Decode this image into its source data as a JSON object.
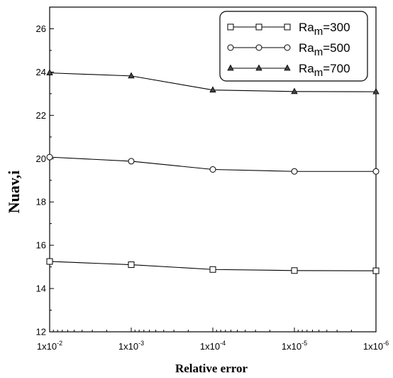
{
  "chart_data": {
    "type": "line",
    "xlabel": "Relative error",
    "ylabel": "Nuav,i",
    "x_scale": "log-reversed",
    "xlim": [
      0.01,
      1e-06
    ],
    "ylim": [
      12,
      27
    ],
    "x": [
      0.01,
      0.001,
      0.0001,
      1e-05,
      1e-06
    ],
    "x_tick_labels": [
      {
        "base": "1x10",
        "exp": "-2"
      },
      {
        "base": "1x10",
        "exp": "-3"
      },
      {
        "base": "1x10",
        "exp": "-4"
      },
      {
        "base": "1x10",
        "exp": "-5"
      },
      {
        "base": "1x10",
        "exp": "-6"
      }
    ],
    "y_ticks": [
      12,
      14,
      16,
      18,
      20,
      22,
      24,
      26
    ],
    "y_tick_labels": [
      "12",
      "14",
      "16",
      "18",
      "20",
      "22",
      "24",
      "26"
    ],
    "grid": false,
    "legend_position": "top-right",
    "series": [
      {
        "name_base": "Ra",
        "name_sub": "m",
        "name_rest": "=300",
        "marker": "square",
        "values": [
          15.25,
          15.1,
          14.88,
          14.83,
          14.82
        ]
      },
      {
        "name_base": "Ra",
        "name_sub": "m",
        "name_rest": "=500",
        "marker": "circle",
        "values": [
          20.07,
          19.88,
          19.5,
          19.41,
          19.41
        ]
      },
      {
        "name_base": "Ra",
        "name_sub": "m",
        "name_rest": "=700",
        "marker": "triangle",
        "values": [
          23.96,
          23.82,
          23.17,
          23.1,
          23.09
        ]
      }
    ]
  }
}
